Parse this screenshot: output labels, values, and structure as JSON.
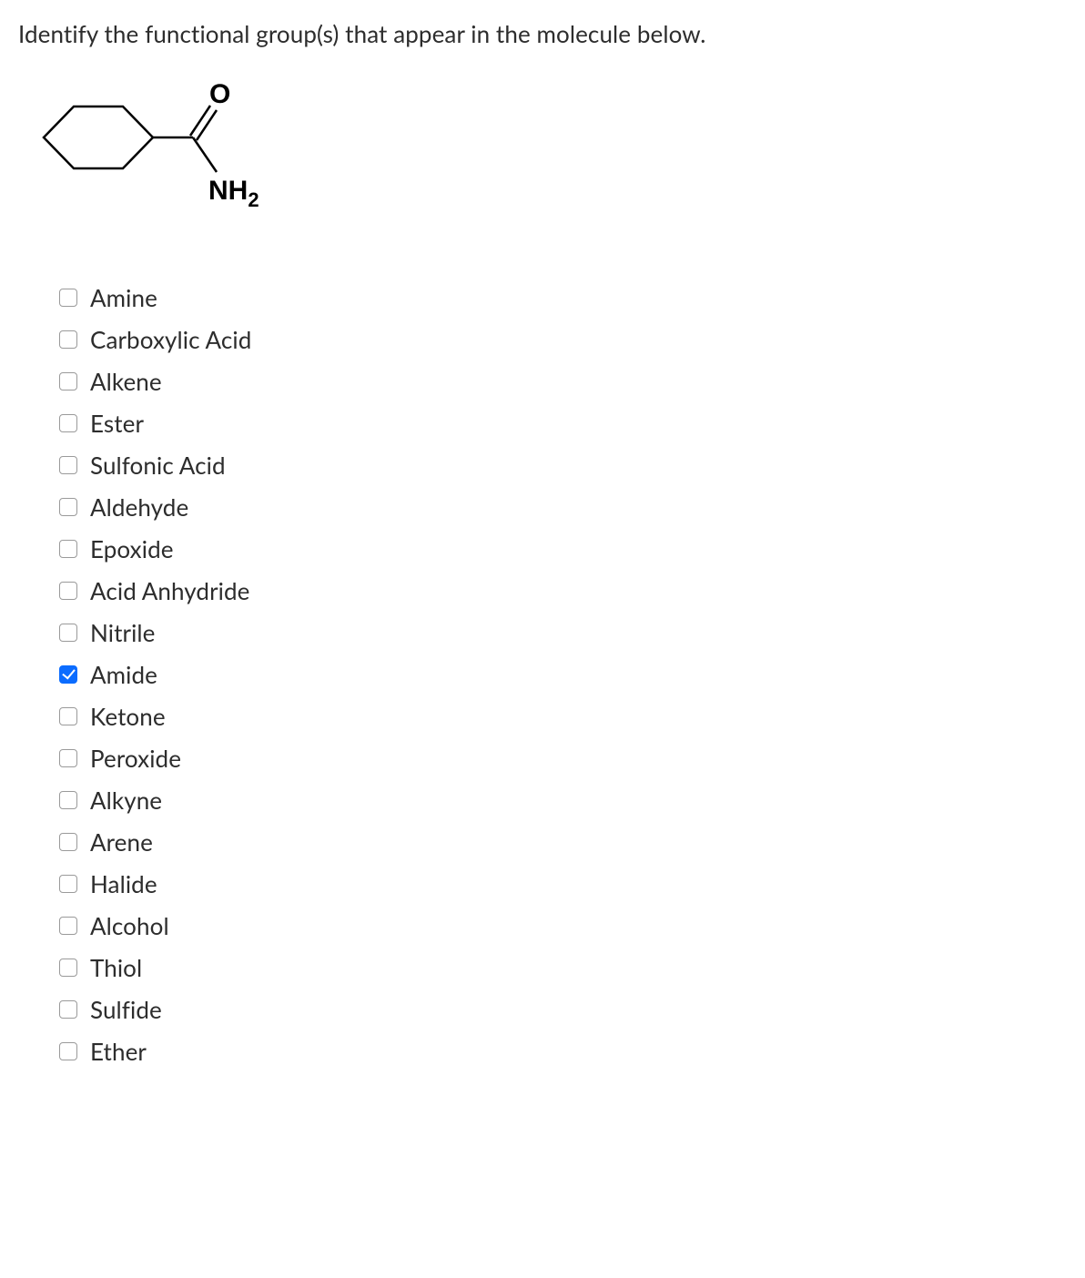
{
  "question": "Identify the functional group(s) that appear in the molecule below.",
  "molecule": {
    "atom_O": "O",
    "atom_N": "NH",
    "atom_N_sub": "2"
  },
  "options": [
    {
      "label": "Amine",
      "checked": false
    },
    {
      "label": "Carboxylic Acid",
      "checked": false
    },
    {
      "label": "Alkene",
      "checked": false
    },
    {
      "label": "Ester",
      "checked": false
    },
    {
      "label": "Sulfonic Acid",
      "checked": false
    },
    {
      "label": "Aldehyde",
      "checked": false
    },
    {
      "label": "Epoxide",
      "checked": false
    },
    {
      "label": "Acid Anhydride",
      "checked": false
    },
    {
      "label": "Nitrile",
      "checked": false
    },
    {
      "label": "Amide",
      "checked": true
    },
    {
      "label": "Ketone",
      "checked": false
    },
    {
      "label": "Peroxide",
      "checked": false
    },
    {
      "label": "Alkyne",
      "checked": false
    },
    {
      "label": "Arene",
      "checked": false
    },
    {
      "label": "Halide",
      "checked": false
    },
    {
      "label": "Alcohol",
      "checked": false
    },
    {
      "label": "Thiol",
      "checked": false
    },
    {
      "label": "Sulfide",
      "checked": false
    },
    {
      "label": "Ether",
      "checked": false
    }
  ],
  "colors": {
    "text": "#2d2d2d",
    "checkbox_border": "#9a9a9a",
    "checkbox_checked_bg": "#0b6cff",
    "background": "#ffffff"
  }
}
